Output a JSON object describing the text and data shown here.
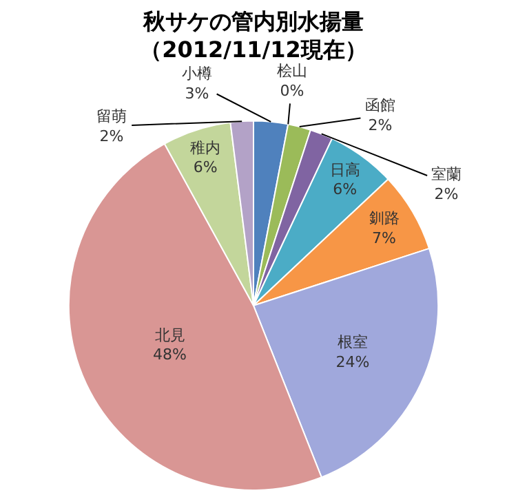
{
  "chart_data": {
    "type": "pie",
    "title": "秋サケの管内別水揚量",
    "subtitle": "（2012/11/12現在）",
    "categories": [
      "小樽",
      "桧山",
      "函館",
      "室蘭",
      "日高",
      "釧路",
      "根室",
      "北見",
      "稚内",
      "留萌"
    ],
    "values": [
      3,
      0,
      2,
      2,
      6,
      7,
      24,
      48,
      6,
      2
    ],
    "value_labels": [
      "3%",
      "0%",
      "2%",
      "2%",
      "6%",
      "7%",
      "24%",
      "48%",
      "6%",
      "2%"
    ],
    "colors": [
      "#4f81bd",
      "#c0504d",
      "#9bbb59",
      "#8064a2",
      "#4bacc6",
      "#f79646",
      "#a0a8dc",
      "#d99694",
      "#c3d69b",
      "#b3a2c7"
    ],
    "legend": false
  }
}
